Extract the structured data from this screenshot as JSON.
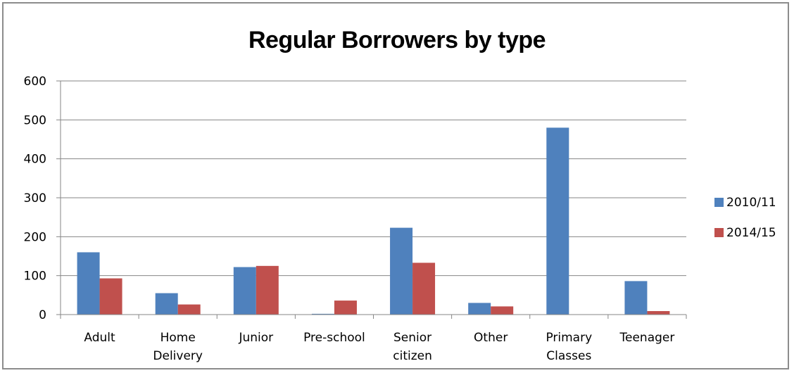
{
  "chart_data": {
    "type": "bar",
    "title": "Regular Borrowers by type",
    "xlabel": "",
    "ylabel": "",
    "ylim": [
      0,
      600
    ],
    "yticks": [
      0,
      100,
      200,
      300,
      400,
      500,
      600
    ],
    "categories": [
      [
        "Adult"
      ],
      [
        "Home",
        "Delivery"
      ],
      [
        "Junior"
      ],
      [
        "Pre-school"
      ],
      [
        "Senior",
        "citizen"
      ],
      [
        "Other"
      ],
      [
        "Primary",
        "Classes"
      ],
      [
        "Teenager"
      ]
    ],
    "series": [
      {
        "name": "2010/11",
        "color": "#4f81bd",
        "values": [
          160,
          55,
          122,
          2,
          223,
          30,
          480,
          86
        ]
      },
      {
        "name": "2014/15",
        "color": "#c0504d",
        "values": [
          93,
          26,
          125,
          36,
          133,
          21,
          0,
          9
        ]
      }
    ],
    "grid": true,
    "legend_position": "right"
  }
}
